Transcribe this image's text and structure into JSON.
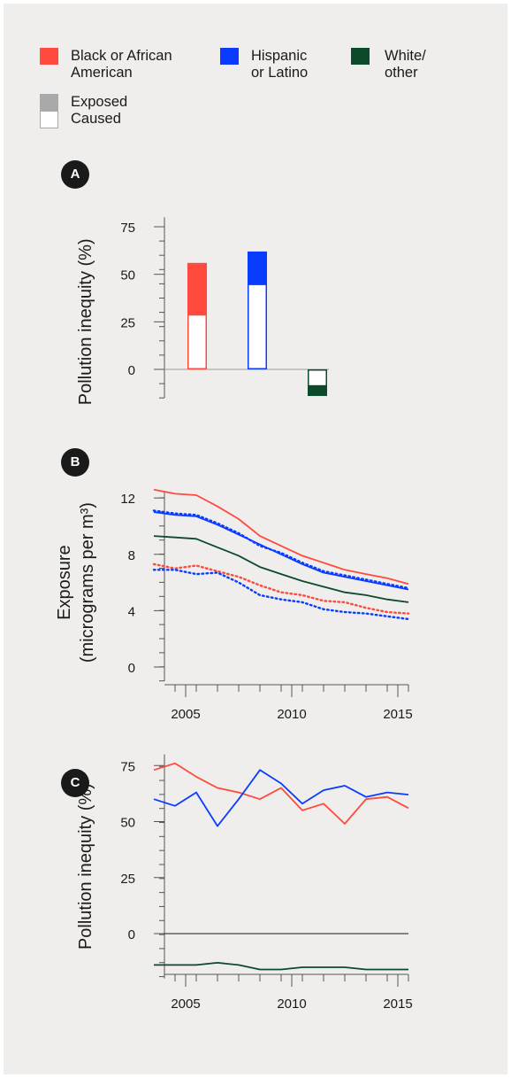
{
  "colors": {
    "black_african_american": "#ff4a3d",
    "hispanic_latino": "#0a3cff",
    "white_other": "#0c4a2c",
    "exposed": "#a9a9a9",
    "panel_bg": "#efeeec",
    "axis": "#555555"
  },
  "legend": {
    "groups": [
      {
        "label_line1": "Black or African",
        "label_line2": "American",
        "color": "#ff4a3d"
      },
      {
        "label_line1": "Hispanic",
        "label_line2": "or Latino",
        "color": "#0a3cff"
      },
      {
        "label_line1": "White/",
        "label_line2": "other",
        "color": "#0c4a2c"
      }
    ],
    "exposed_label": "Exposed",
    "caused_label": "Caused"
  },
  "chart_data": [
    {
      "panel": "A",
      "type": "bar",
      "ylabel": "Pollution inequity (%)",
      "yticks": [
        0,
        25,
        50,
        75
      ],
      "ylim": [
        -15,
        80
      ],
      "grid": false,
      "categories": [
        "Black or African American",
        "Hispanic or Latino",
        "White/other"
      ],
      "series": [
        {
          "name": "Exposed",
          "values": [
            56,
            62,
            -14
          ]
        },
        {
          "name": "Caused",
          "values": [
            29,
            45,
            -9
          ]
        }
      ]
    },
    {
      "panel": "B",
      "type": "line",
      "ylabel_line1": "Exposure",
      "ylabel_line2": "(micrograms per m³)",
      "yticks": [
        0,
        4,
        8,
        12
      ],
      "ylim": [
        -1,
        12.5
      ],
      "xticks": [
        2005,
        2010,
        2015
      ],
      "xlim": [
        2003.5,
        2015.5
      ],
      "grid": false,
      "x": [
        2003.5,
        2004.5,
        2005.5,
        2006.5,
        2007.5,
        2008.5,
        2009.5,
        2010.5,
        2011.5,
        2012.5,
        2013.5,
        2014.5,
        2015.5
      ],
      "series": [
        {
          "group": "black_african_american",
          "style": "solid",
          "values": [
            12.6,
            12.3,
            12.2,
            11.4,
            10.5,
            9.3,
            8.6,
            7.9,
            7.4,
            6.9,
            6.6,
            6.3,
            5.9
          ]
        },
        {
          "group": "hispanic_latino",
          "style": "solid",
          "values": [
            11.0,
            10.8,
            10.7,
            10.1,
            9.4,
            8.7,
            8.0,
            7.3,
            6.7,
            6.4,
            6.1,
            5.8,
            5.5
          ]
        },
        {
          "group": "hispanic_latino",
          "style": "dotted",
          "values": [
            11.1,
            10.9,
            10.8,
            10.2,
            9.5,
            8.6,
            8.1,
            7.4,
            6.8,
            6.5,
            6.2,
            5.9,
            5.6
          ]
        },
        {
          "group": "white_other",
          "style": "solid",
          "values": [
            9.3,
            9.2,
            9.1,
            8.5,
            7.9,
            7.1,
            6.6,
            6.1,
            5.7,
            5.3,
            5.1,
            4.8,
            4.6
          ]
        },
        {
          "group": "black_african_american",
          "style": "dotted",
          "values": [
            7.3,
            7.0,
            7.2,
            6.8,
            6.4,
            5.8,
            5.3,
            5.1,
            4.7,
            4.6,
            4.2,
            3.9,
            3.8
          ]
        },
        {
          "group": "hispanic_latino",
          "style": "dotted",
          "values": [
            6.9,
            6.9,
            6.6,
            6.7,
            6.0,
            5.1,
            4.8,
            4.6,
            4.1,
            3.9,
            3.8,
            3.6,
            3.4
          ]
        }
      ]
    },
    {
      "panel": "C",
      "type": "line",
      "ylabel": "Pollution inequity (%)",
      "yticks": [
        0,
        25,
        50,
        75
      ],
      "ylim": [
        -20,
        80
      ],
      "xticks": [
        2005,
        2010,
        2015
      ],
      "xlim": [
        2003.5,
        2015.5
      ],
      "grid": false,
      "x": [
        2003.5,
        2004.5,
        2005.5,
        2006.5,
        2007.5,
        2008.5,
        2009.5,
        2010.5,
        2011.5,
        2012.5,
        2013.5,
        2014.5,
        2015.5
      ],
      "series": [
        {
          "group": "black_african_american",
          "values": [
            73,
            76,
            70,
            65,
            63,
            60,
            65,
            55,
            58,
            49,
            60,
            61,
            56
          ]
        },
        {
          "group": "hispanic_latino",
          "values": [
            60,
            57,
            63,
            48,
            60,
            73,
            67,
            58,
            64,
            66,
            61,
            63,
            62
          ]
        },
        {
          "group": "white_other",
          "values": [
            -14,
            -14,
            -14,
            -13,
            -14,
            -16,
            -16,
            -15,
            -15,
            -15,
            -16,
            -16,
            -16
          ]
        }
      ]
    }
  ],
  "panels": {
    "a_badge": "A",
    "b_badge": "B",
    "c_badge": "C"
  }
}
